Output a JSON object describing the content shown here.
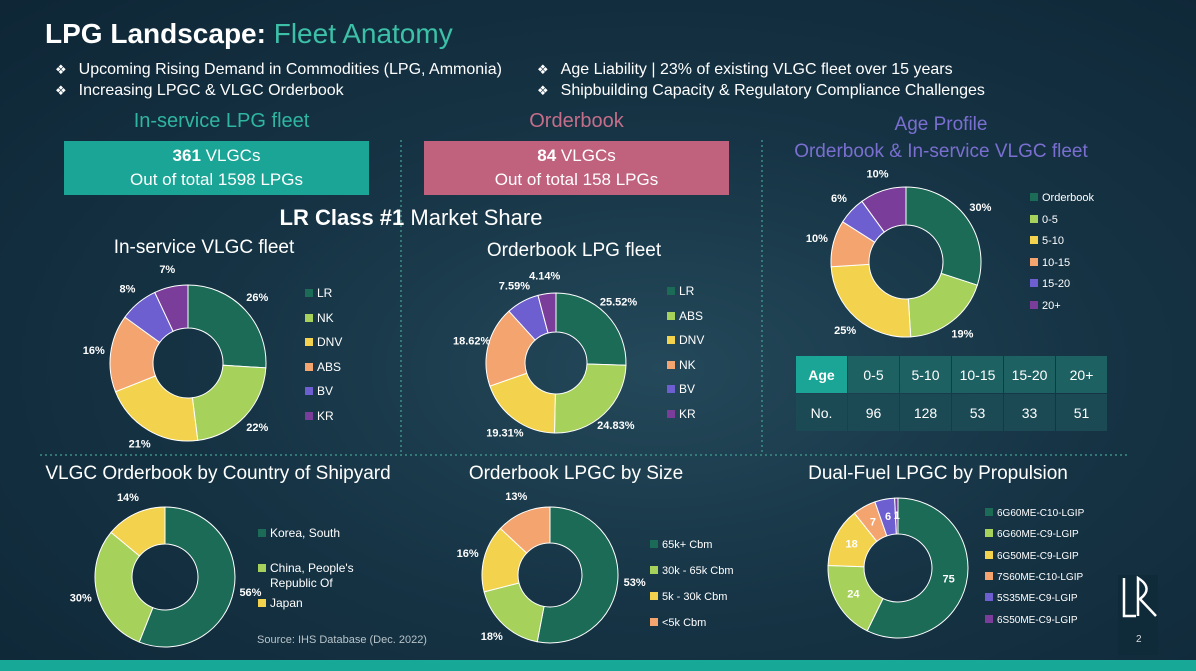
{
  "header": {
    "title": "LPG Landscape:",
    "subtitle": "Fleet Anatomy"
  },
  "bullets": [
    "Upcoming Rising Demand in Commodities (LPG, Ammonia)",
    "Increasing LPGC & VLGC Orderbook",
    "Age Liability | 23% of existing VLGC fleet over 15 years",
    "Shipbuilding Capacity & Regulatory Compliance Challenges"
  ],
  "summary": [
    {
      "heading": "In-service LPG fleet",
      "count": "361",
      "unit": "VLGCs",
      "detail": "Out of total 1598 LPGs"
    },
    {
      "heading": "Orderbook",
      "count": "84",
      "unit": "VLGCs",
      "detail": "Out of total 158 LPGs"
    }
  ],
  "section_title": {
    "bold": "LR Class #1",
    "rest": "Market Share"
  },
  "chart_data": [
    {
      "type": "donut",
      "title": "In-service VLGC fleet",
      "categories": [
        "LR",
        "NK",
        "DNV",
        "ABS",
        "BV",
        "KR"
      ],
      "values": [
        26,
        22,
        21,
        16,
        8,
        7
      ],
      "value_labels": [
        "26%",
        "22%",
        "21%",
        "16%",
        "8%",
        "7%"
      ],
      "colors": [
        "#1b6b56",
        "#a6d15a",
        "#f3d34d",
        "#f4a46e",
        "#6e5fd0",
        "#7a3e9a"
      ]
    },
    {
      "type": "donut",
      "title": "Orderbook LPG fleet",
      "categories": [
        "LR",
        "ABS",
        "DNV",
        "NK",
        "BV",
        "KR"
      ],
      "values": [
        25.52,
        24.83,
        19.31,
        18.62,
        7.59,
        4.14
      ],
      "value_labels": [
        "25.52%",
        "24.83%",
        "19.31%",
        "18.62%",
        "7.59%",
        "4.14%"
      ],
      "colors": [
        "#1b6b56",
        "#a6d15a",
        "#f3d34d",
        "#f4a46e",
        "#6e5fd0",
        "#7a3e9a"
      ]
    },
    {
      "type": "donut",
      "title": "Age Profile",
      "subtitle": "Orderbook & In-service VLGC fleet",
      "categories": [
        "Orderbook",
        "0-5",
        "5-10",
        "10-15",
        "15-20",
        "20+"
      ],
      "values": [
        30,
        19,
        25,
        10,
        6,
        10
      ],
      "value_labels": [
        "30%",
        "19%",
        "25%",
        "10%",
        "6%",
        "10%"
      ],
      "colors": [
        "#1b6b56",
        "#a6d15a",
        "#f3d34d",
        "#f4a46e",
        "#6e5fd0",
        "#7a3e9a"
      ]
    },
    {
      "type": "donut",
      "title": "VLGC Orderbook by Country of Shipyard",
      "categories": [
        "Korea, South",
        "China, People's Republic Of",
        "Japan"
      ],
      "values": [
        56,
        30,
        14
      ],
      "value_labels": [
        "56%",
        "30%",
        "14%"
      ],
      "colors": [
        "#1b6b56",
        "#a6d15a",
        "#f3d34d"
      ]
    },
    {
      "type": "donut",
      "title": "Orderbook LPGC by Size",
      "categories": [
        "65k+ Cbm",
        "30k - 65k Cbm",
        "5k - 30k Cbm",
        "<5k Cbm"
      ],
      "values": [
        53,
        18,
        16,
        13
      ],
      "value_labels": [
        "53%",
        "18%",
        "16%",
        "13%"
      ],
      "colors": [
        "#1b6b56",
        "#a6d15a",
        "#f3d34d",
        "#f4a46e"
      ]
    },
    {
      "type": "donut",
      "title": "Dual-Fuel LPGC by Propulsion",
      "categories": [
        "6G60ME-C10-LGIP",
        "6G60ME-C9-LGIP",
        "6G50ME-C9-LGIP",
        "7S60ME-C10-LGIP",
        "5S35ME-C9-LGIP",
        "6S50ME-C9-LGIP"
      ],
      "values": [
        75,
        24,
        18,
        7,
        6,
        1
      ],
      "colors": [
        "#1b6b56",
        "#a6d15a",
        "#f3d34d",
        "#f4a46e",
        "#6e5fd0",
        "#7a3e9a"
      ]
    }
  ],
  "table": {
    "header": [
      "Age",
      "0-5",
      "5-10",
      "10-15",
      "15-20",
      "20+"
    ],
    "rows": [
      [
        "No.",
        96,
        128,
        53,
        33,
        51
      ]
    ]
  },
  "source": "Source: IHS Database (Dec. 2022)",
  "page_number": "2"
}
